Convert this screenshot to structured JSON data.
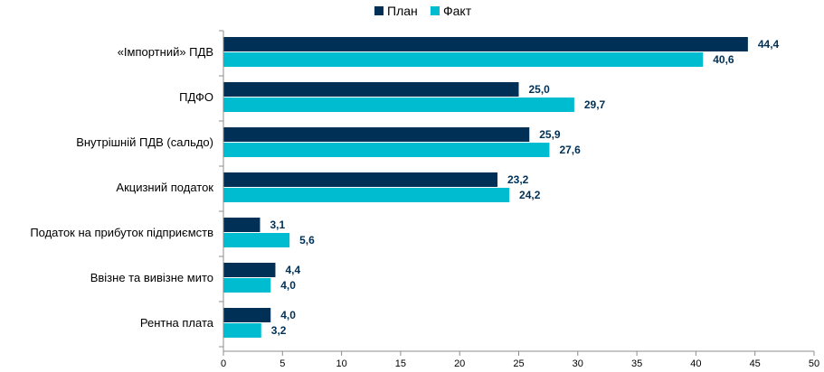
{
  "chart_data": {
    "type": "bar",
    "orientation": "horizontal",
    "categories": [
      "«Імпортний» ПДВ",
      "ПДФО",
      "Внутрішній ПДВ (сальдо)",
      "Акцизний податок",
      "Податок на прибуток підприємств",
      "Ввізне та вивізне мито",
      "Рентна плата"
    ],
    "series": [
      {
        "name": "План",
        "color": "#003056",
        "values": [
          44.4,
          25.0,
          25.9,
          23.2,
          3.1,
          4.4,
          4.0
        ],
        "labels": [
          "44,4",
          "25,0",
          "25,9",
          "23,2",
          "3,1",
          "4,4",
          "4,0"
        ]
      },
      {
        "name": "Факт",
        "color": "#00bcd0",
        "values": [
          40.6,
          29.7,
          27.6,
          24.2,
          5.6,
          4.0,
          3.2
        ],
        "labels": [
          "40,6",
          "29,7",
          "27,6",
          "24,2",
          "5,6",
          "4,0",
          "3,2"
        ]
      }
    ],
    "xlim": [
      0,
      50
    ],
    "xticks": [
      0,
      5,
      10,
      15,
      20,
      25,
      30,
      35,
      40,
      45,
      50
    ],
    "legend_position": "top-center",
    "grid": false,
    "title": "",
    "xlabel": "",
    "ylabel": ""
  }
}
